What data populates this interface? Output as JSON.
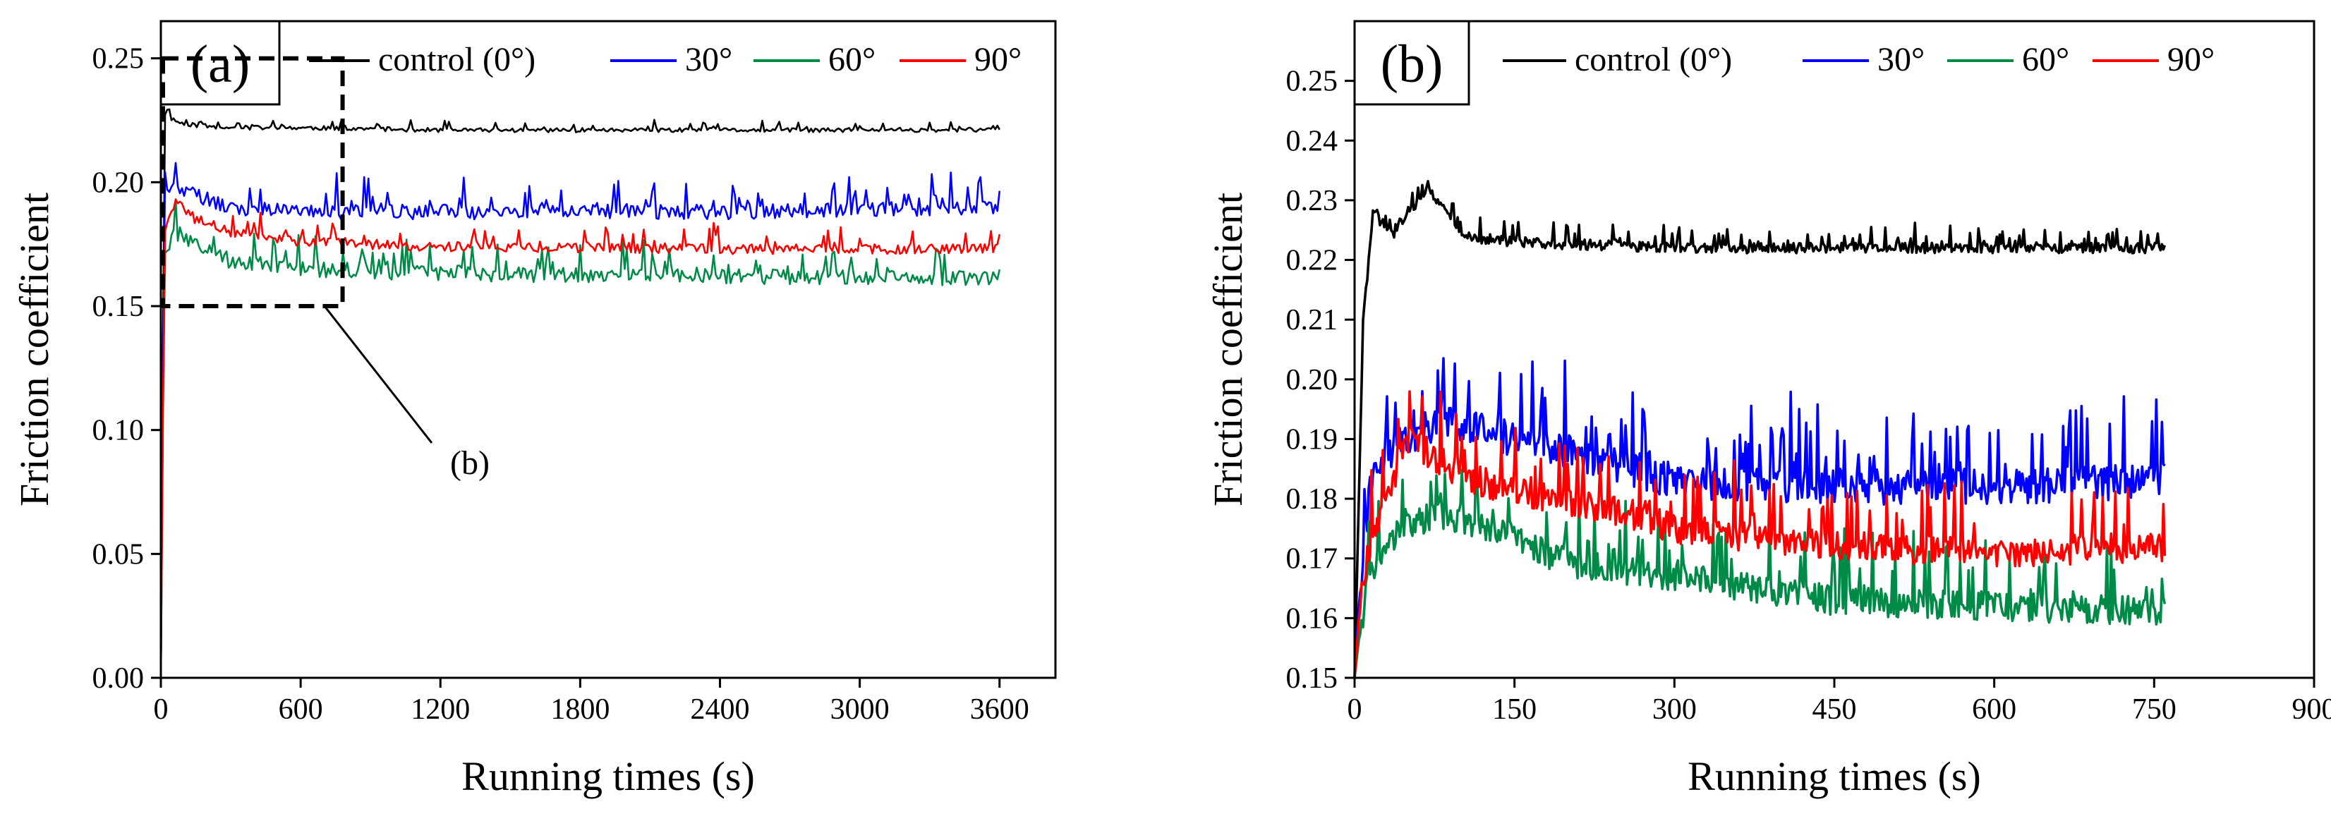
{
  "chart_data": [
    {
      "type": "line",
      "panel": "(a)",
      "xlabel": "Running times (s)",
      "ylabel": "Friction coefficient",
      "xlim": [
        0,
        3840
      ],
      "ylim": [
        0.0,
        0.265
      ],
      "xticks": [
        0,
        600,
        1200,
        1800,
        2400,
        3000,
        3600
      ],
      "yticks": [
        0.0,
        0.05,
        0.1,
        0.15,
        0.2,
        0.25
      ],
      "ytick_labels": [
        "0.00",
        "0.05",
        "0.10",
        "0.15",
        "0.20",
        "0.25"
      ],
      "x_range": [
        0,
        3600
      ],
      "legend": {
        "position": "top",
        "entries": [
          "control (0°)",
          "30°",
          "60°",
          "90°"
        ]
      },
      "series": [
        {
          "name": "control (0°)",
          "color": "#000000",
          "x": [
            0,
            15,
            40,
            80,
            150,
            300,
            600,
            1200,
            2400,
            3600
          ],
          "y": [
            0.0,
            0.228,
            0.226,
            0.224,
            0.223,
            0.222,
            0.222,
            0.221,
            0.221,
            0.221
          ]
        },
        {
          "name": "30°",
          "color": "#0000ff",
          "x": [
            0,
            15,
            50,
            150,
            300,
            600,
            1200,
            2400,
            3600
          ],
          "y": [
            0.0,
            0.195,
            0.198,
            0.195,
            0.19,
            0.188,
            0.188,
            0.188,
            0.19
          ]
        },
        {
          "name": "60°",
          "color": "#008a47",
          "x": [
            0,
            15,
            60,
            150,
            300,
            600,
            1200,
            2400,
            3600
          ],
          "y": [
            0.0,
            0.172,
            0.18,
            0.175,
            0.168,
            0.165,
            0.163,
            0.162,
            0.161
          ]
        },
        {
          "name": "90°",
          "color": "#ff0000",
          "x": [
            0,
            15,
            60,
            150,
            300,
            600,
            1200,
            2400,
            3600
          ],
          "y": [
            0.0,
            0.18,
            0.192,
            0.185,
            0.18,
            0.176,
            0.174,
            0.173,
            0.173
          ]
        }
      ],
      "annotations": [
        {
          "text": "(b)",
          "box_x": [
            0,
            780
          ],
          "box_y": [
            0.15,
            0.25
          ]
        }
      ]
    },
    {
      "type": "line",
      "panel": "(b)",
      "xlabel": "Running times (s)",
      "ylabel": "Friction coefficient",
      "xlim": [
        0,
        900
      ],
      "ylim": [
        0.15,
        0.26
      ],
      "xticks": [
        0,
        150,
        300,
        450,
        600,
        750,
        900
      ],
      "yticks": [
        0.15,
        0.16,
        0.17,
        0.18,
        0.19,
        0.2,
        0.21,
        0.22,
        0.23,
        0.24,
        0.25
      ],
      "ytick_labels": [
        "0.15",
        "0.16",
        "0.17",
        "0.18",
        "0.19",
        "0.20",
        "0.21",
        "0.22",
        "0.23",
        "0.24",
        "0.25"
      ],
      "x_range": [
        0,
        760
      ],
      "legend": {
        "position": "top",
        "entries": [
          "control (0°)",
          "30°",
          "60°",
          "90°"
        ]
      },
      "series": [
        {
          "name": "control (0°)",
          "color": "#000000",
          "x": [
            0,
            8,
            18,
            35,
            70,
            100,
            150,
            300,
            450,
            600,
            760
          ],
          "y": [
            0.15,
            0.21,
            0.228,
            0.224,
            0.232,
            0.224,
            0.223,
            0.222,
            0.222,
            0.222,
            0.222
          ]
        },
        {
          "name": "30°",
          "color": "#0000ff",
          "x": [
            0,
            5,
            15,
            45,
            80,
            150,
            200,
            260,
            300,
            450,
            600,
            760
          ],
          "y": [
            0.15,
            0.165,
            0.183,
            0.19,
            0.193,
            0.19,
            0.188,
            0.185,
            0.183,
            0.182,
            0.182,
            0.183
          ]
        },
        {
          "name": "60°",
          "color": "#008a47",
          "x": [
            0,
            5,
            15,
            45,
            80,
            140,
            200,
            300,
            450,
            600,
            760
          ],
          "y": [
            0.15,
            0.158,
            0.168,
            0.176,
            0.177,
            0.175,
            0.169,
            0.167,
            0.163,
            0.162,
            0.161
          ]
        },
        {
          "name": "90°",
          "color": "#ff0000",
          "x": [
            0,
            5,
            15,
            50,
            100,
            150,
            250,
            300,
            450,
            600,
            760
          ],
          "y": [
            0.15,
            0.162,
            0.173,
            0.19,
            0.184,
            0.181,
            0.178,
            0.175,
            0.172,
            0.171,
            0.172
          ]
        }
      ]
    }
  ]
}
